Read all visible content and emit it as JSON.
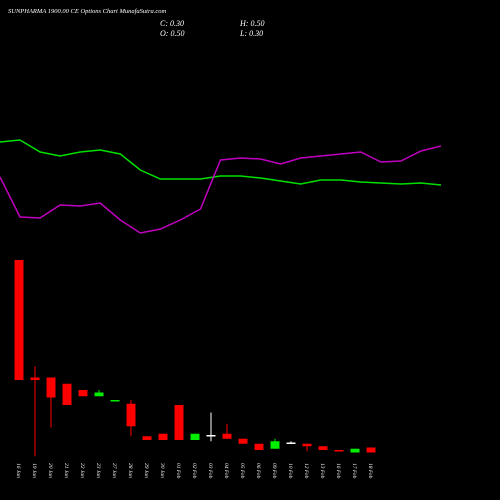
{
  "chart_data": {
    "type": "candlestick",
    "title": "SUNPHARMA 1900.00 CE Options Chart MunafaSutra.com",
    "stats": [
      "C: 0.30",
      "H: 0.50",
      "O: 0.50",
      "L: 0.30"
    ],
    "categories": [
      "16 Jan",
      "19 Jan",
      "20 Jan",
      "21 Jan",
      "22 Jan",
      "23 Jan",
      "27 Jan",
      "28 Jan",
      "29 Jan",
      "30 Jan",
      "01 Feb",
      "02 Feb",
      "03 Feb",
      "04 Feb",
      "05 Feb",
      "06 Feb",
      "09 Feb",
      "10 Feb",
      "12 Feb",
      "13 Feb",
      "16 Feb",
      "17 Feb",
      "18 Feb"
    ],
    "open": [
      8.0,
      3.3,
      3.3,
      3.05,
      2.8,
      2.55,
      2.35,
      2.25,
      0.95,
      1.05,
      2.2,
      0.8,
      1.0,
      1.05,
      0.85,
      0.65,
      0.45,
      0.7,
      0.65,
      0.55,
      0.4,
      0.3,
      0.5
    ],
    "high": [
      8.0,
      3.75,
      3.3,
      3.05,
      2.8,
      2.8,
      2.4,
      2.4,
      0.95,
      1.05,
      2.2,
      1.05,
      1.9,
      1.45,
      0.85,
      0.65,
      0.85,
      0.75,
      0.65,
      0.55,
      0.4,
      0.45,
      0.5
    ],
    "low": [
      3.2,
      0.15,
      1.3,
      2.2,
      2.55,
      2.55,
      2.35,
      0.95,
      0.8,
      0.8,
      0.8,
      0.8,
      0.75,
      0.85,
      0.65,
      0.4,
      0.45,
      0.65,
      0.35,
      0.4,
      0.35,
      0.3,
      0.3
    ],
    "close": [
      3.2,
      3.2,
      2.5,
      2.2,
      2.55,
      2.7,
      2.4,
      1.35,
      0.8,
      0.8,
      0.8,
      1.05,
      1.0,
      0.85,
      0.65,
      0.4,
      0.75,
      0.7,
      0.55,
      0.4,
      0.35,
      0.45,
      0.3
    ],
    "up_color": "#00ee00",
    "down_color": "#ff0000",
    "flat_color": "#ffffff",
    "ylim": [
      0,
      8.4
    ],
    "lines": [
      {
        "color": "#00e000",
        "values": [
          108,
          110,
          98,
          94,
          98,
          100,
          96,
          80,
          71,
          71,
          71,
          74,
          74,
          72,
          69,
          66,
          70,
          70,
          68,
          67,
          66,
          67,
          65
        ]
      },
      {
        "color": "#c000c0",
        "values": [
          73,
          33,
          32,
          45,
          44,
          47,
          30,
          17,
          21,
          30,
          41,
          90,
          92,
          91,
          86,
          92,
          94,
          96,
          98,
          88,
          89,
          99,
          104
        ]
      }
    ],
    "lines_ylim": [
      0,
      130
    ]
  }
}
